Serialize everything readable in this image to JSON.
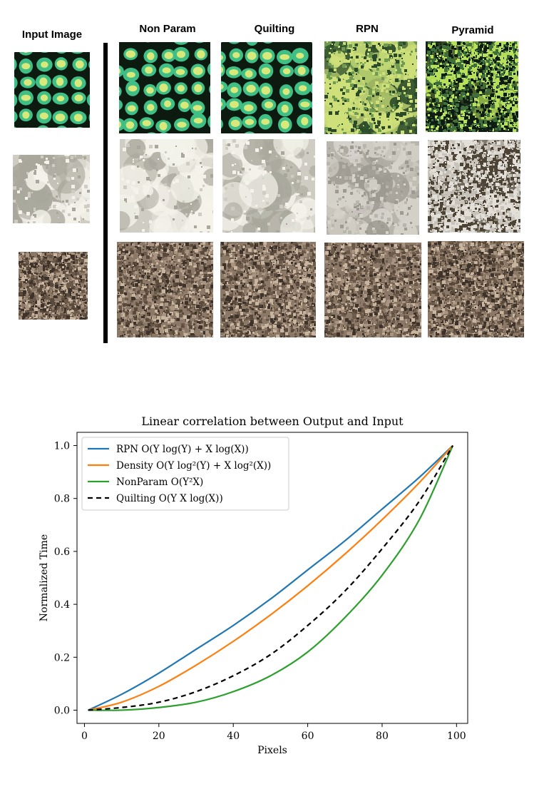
{
  "texture_grid": {
    "input_header": "Input Image",
    "method_headers": [
      "Non Param",
      "Quilting",
      "RPN",
      "Pyramid"
    ],
    "rows": [
      {
        "texture": "green-yellow cells",
        "palette": {
          "base": "#0d1a10",
          "hi": "#d8e87a",
          "mid": "#3fbf86"
        }
      },
      {
        "texture": "white plaster",
        "palette": {
          "base": "#a9a79c",
          "hi": "#f4f2ea",
          "mid": "#cfcdc3"
        }
      },
      {
        "texture": "brown gravel",
        "palette": {
          "base": "#5a4a3c",
          "hi": "#c9b6a0",
          "mid": "#8c7866"
        }
      }
    ]
  },
  "chart_data": {
    "type": "line",
    "title": "Linear correlation between Output and Input",
    "xlabel": "Pixels",
    "ylabel": "Normalized Time",
    "xlim": [
      -2,
      103
    ],
    "ylim": [
      -0.05,
      1.05
    ],
    "xticks": [
      0,
      20,
      40,
      60,
      80,
      100
    ],
    "yticks": [
      0.0,
      0.2,
      0.4,
      0.6,
      0.8,
      1.0
    ],
    "grid": false,
    "legend_position": "top-left",
    "x": [
      1,
      10,
      20,
      30,
      40,
      50,
      60,
      70,
      80,
      90,
      99
    ],
    "series": [
      {
        "name": "RPN O(Y log(Y) + X log(X))",
        "color": "#1f77b4",
        "style": "solid",
        "values": [
          0.0,
          0.06,
          0.14,
          0.23,
          0.32,
          0.42,
          0.53,
          0.64,
          0.76,
          0.88,
          1.0
        ]
      },
      {
        "name": "Density O(Y log²(Y) + X log²(X))",
        "color": "#ff7f0e",
        "style": "solid",
        "values": [
          0.0,
          0.03,
          0.09,
          0.17,
          0.26,
          0.36,
          0.47,
          0.59,
          0.72,
          0.86,
          1.0
        ]
      },
      {
        "name": "NonParam O(Y²X)",
        "color": "#2ca02c",
        "style": "solid",
        "values": [
          0.0,
          0.0,
          0.01,
          0.03,
          0.07,
          0.13,
          0.22,
          0.35,
          0.51,
          0.72,
          1.0
        ]
      },
      {
        "name": "Quilting O(Y X log(X))",
        "color": "#000000",
        "style": "dashed",
        "values": [
          0.0,
          0.01,
          0.03,
          0.07,
          0.13,
          0.21,
          0.32,
          0.45,
          0.61,
          0.79,
          1.0
        ]
      }
    ]
  }
}
